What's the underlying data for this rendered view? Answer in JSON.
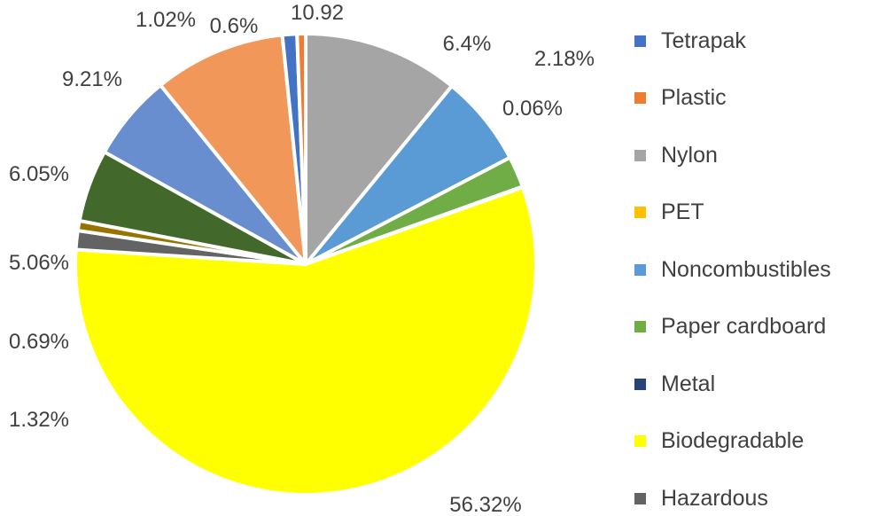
{
  "chart_data": {
    "type": "pie",
    "title": "",
    "start_angle_deg": 0,
    "slices": [
      {
        "name": "Nylon",
        "value": 10.92,
        "label": "10.92",
        "color": "#a5a5a5"
      },
      {
        "name": "Noncombustibles",
        "value": 6.4,
        "label": "6.4%",
        "color": "#5b9bd5"
      },
      {
        "name": "Paper cardboard",
        "value": 2.18,
        "label": "2.18%",
        "color": "#70ad47"
      },
      {
        "name": "Metal",
        "value": 0.06,
        "label": "0.06%",
        "color": "#264478"
      },
      {
        "name": "Biodegradable",
        "value": 56.32,
        "label": "56.32%",
        "color": "#ffff00"
      },
      {
        "name": "Hazardous",
        "value": 1.32,
        "label": "1.32%",
        "color": "#636363"
      },
      {
        "name": "",
        "value": 0.69,
        "label": "0.69%",
        "color": "#997300"
      },
      {
        "name": "",
        "value": 5.06,
        "label": "5.06%",
        "color": "#43682b"
      },
      {
        "name": "",
        "value": 6.05,
        "label": "6.05%",
        "color": "#698ed0"
      },
      {
        "name": "",
        "value": 9.21,
        "label": "9.21%",
        "color": "#f1975a"
      },
      {
        "name": "Tetrapak",
        "value": 1.02,
        "label": "1.02%",
        "color": "#4472c4"
      },
      {
        "name": "Plastic",
        "value": 0.6,
        "label": "0.6%",
        "color": "#ed7d31"
      }
    ],
    "legend": {
      "position": "right",
      "entries": [
        {
          "label": "Tetrapak",
          "color": "#4472c4"
        },
        {
          "label": "Plastic",
          "color": "#ed7d31"
        },
        {
          "label": "Nylon",
          "color": "#a5a5a5"
        },
        {
          "label": "PET",
          "color": "#ffc000"
        },
        {
          "label": "Noncombustibles",
          "color": "#5b9bd5"
        },
        {
          "label": "Paper cardboard",
          "color": "#70ad47"
        },
        {
          "label": "Metal",
          "color": "#264478"
        },
        {
          "label": "Biodegradable",
          "color": "#ffff00"
        },
        {
          "label": "Hazardous",
          "color": "#636363"
        }
      ]
    }
  }
}
